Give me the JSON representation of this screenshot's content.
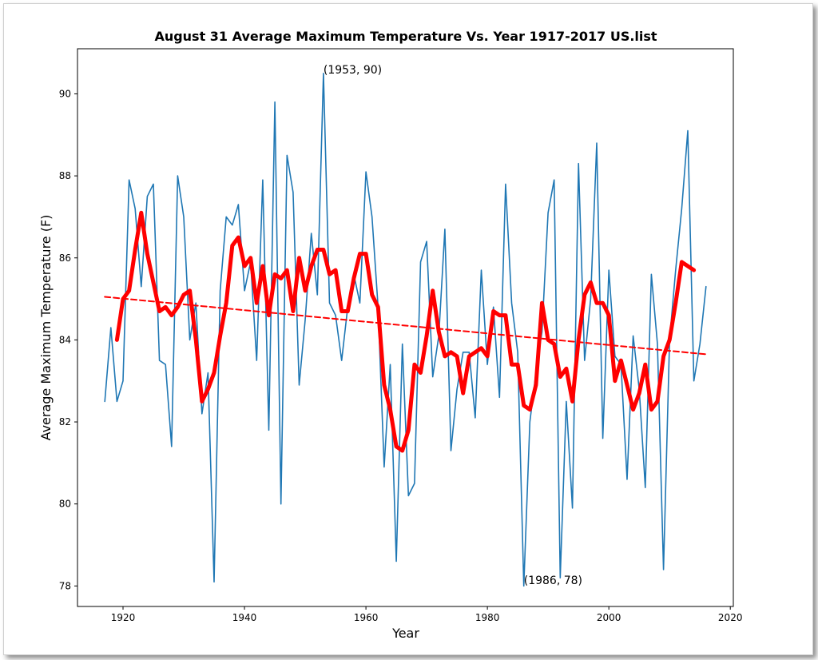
{
  "chart_data": {
    "type": "line",
    "title": "August 31 Average Maximum Temperature Vs. Year 1917-2017 US.list",
    "xlabel": "Year",
    "ylabel": "Average Maximum Temperature (F)",
    "xlim": [
      1912.5,
      2020.5
    ],
    "ylim": [
      77.5,
      91.1
    ],
    "xticks": [
      1920,
      1940,
      1960,
      1980,
      2000,
      2020
    ],
    "yticks": [
      78,
      80,
      82,
      84,
      86,
      88,
      90
    ],
    "grid": false,
    "series": [
      {
        "kind": "annual",
        "color": "#1f77b4",
        "x": [
          1917,
          1918,
          1919,
          1920,
          1921,
          1922,
          1923,
          1924,
          1925,
          1926,
          1927,
          1928,
          1929,
          1930,
          1931,
          1932,
          1933,
          1934,
          1935,
          1936,
          1937,
          1938,
          1939,
          1940,
          1941,
          1942,
          1943,
          1944,
          1945,
          1946,
          1947,
          1948,
          1949,
          1950,
          1951,
          1952,
          1953,
          1954,
          1955,
          1956,
          1957,
          1958,
          1959,
          1960,
          1961,
          1962,
          1963,
          1964,
          1965,
          1966,
          1967,
          1968,
          1969,
          1970,
          1971,
          1972,
          1973,
          1974,
          1975,
          1976,
          1977,
          1978,
          1979,
          1980,
          1981,
          1982,
          1983,
          1984,
          1985,
          1986,
          1987,
          1988,
          1989,
          1990,
          1991,
          1992,
          1993,
          1994,
          1995,
          1996,
          1997,
          1998,
          1999,
          2000,
          2001,
          2002,
          2003,
          2004,
          2005,
          2006,
          2007,
          2008,
          2009,
          2010,
          2011,
          2012,
          2013,
          2014,
          2015,
          2016
        ],
        "y": [
          82.5,
          84.3,
          82.5,
          83.0,
          87.9,
          87.2,
          85.3,
          87.5,
          87.8,
          83.5,
          83.4,
          81.4,
          88.0,
          87.0,
          84.0,
          84.9,
          82.2,
          83.2,
          78.1,
          85.2,
          87.0,
          86.8,
          87.3,
          85.2,
          85.9,
          83.5,
          87.9,
          81.8,
          89.8,
          80.0,
          88.5,
          87.6,
          82.9,
          84.5,
          86.6,
          85.1,
          90.5,
          84.9,
          84.6,
          83.5,
          84.8,
          85.6,
          84.9,
          88.1,
          87.0,
          84.8,
          80.9,
          83.4,
          78.6,
          83.9,
          80.2,
          80.5,
          85.9,
          86.4,
          83.1,
          84.1,
          86.7,
          81.3,
          82.8,
          83.7,
          83.7,
          82.1,
          85.7,
          83.4,
          84.8,
          82.6,
          87.8,
          84.9,
          83.7,
          78.0,
          82.0,
          83.2,
          84.2,
          87.1,
          87.9,
          78.2,
          82.5,
          79.9,
          88.3,
          83.5,
          85.0,
          88.8,
          81.6,
          85.7,
          83.6,
          83.4,
          80.6,
          84.1,
          82.8,
          80.4,
          85.6,
          83.9,
          78.4,
          84.0,
          85.7,
          87.2,
          89.1,
          83.0,
          83.9,
          85.3
        ]
      },
      {
        "kind": "moving-average",
        "color": "#ff0000",
        "x": [
          1919,
          1920,
          1921,
          1922,
          1923,
          1924,
          1925,
          1926,
          1927,
          1928,
          1929,
          1930,
          1931,
          1932,
          1933,
          1934,
          1935,
          1936,
          1937,
          1938,
          1939,
          1940,
          1941,
          1942,
          1943,
          1944,
          1945,
          1946,
          1947,
          1948,
          1949,
          1950,
          1951,
          1952,
          1953,
          1954,
          1955,
          1956,
          1957,
          1958,
          1959,
          1960,
          1961,
          1962,
          1963,
          1964,
          1965,
          1966,
          1967,
          1968,
          1969,
          1970,
          1971,
          1972,
          1973,
          1974,
          1975,
          1976,
          1977,
          1978,
          1979,
          1980,
          1981,
          1982,
          1983,
          1984,
          1985,
          1986,
          1987,
          1988,
          1989,
          1990,
          1991,
          1992,
          1993,
          1994,
          1995,
          1996,
          1997,
          1998,
          1999,
          2000,
          2001,
          2002,
          2003,
          2004,
          2005,
          2006,
          2007,
          2008,
          2009,
          2010,
          2011,
          2012,
          2013,
          2014
        ],
        "y": [
          84.0,
          85.0,
          85.2,
          86.2,
          87.1,
          86.1,
          85.4,
          84.7,
          84.8,
          84.6,
          84.8,
          85.1,
          85.2,
          84.0,
          82.5,
          82.8,
          83.2,
          84.1,
          84.9,
          86.3,
          86.5,
          85.8,
          86.0,
          84.9,
          85.8,
          84.6,
          85.6,
          85.5,
          85.7,
          84.7,
          86.0,
          85.2,
          85.8,
          86.2,
          86.2,
          85.6,
          85.7,
          84.7,
          84.7,
          85.5,
          86.1,
          86.1,
          85.1,
          84.8,
          82.9,
          82.3,
          81.4,
          81.3,
          81.8,
          83.4,
          83.2,
          84.1,
          85.2,
          84.2,
          83.6,
          83.7,
          83.6,
          82.7,
          83.6,
          83.7,
          83.8,
          83.6,
          84.7,
          84.6,
          84.6,
          83.4,
          83.4,
          82.4,
          82.3,
          82.9,
          84.9,
          84.0,
          83.9,
          83.1,
          83.3,
          82.5,
          84.0,
          85.1,
          85.4,
          84.9,
          84.9,
          84.6,
          83.0,
          83.5,
          82.9,
          82.3,
          82.7,
          83.4,
          82.3,
          82.5,
          83.6,
          84.0,
          84.9,
          85.9,
          85.8,
          85.7
        ]
      },
      {
        "kind": "trend",
        "color": "#ff0000",
        "x": [
          1917,
          2016
        ],
        "y": [
          85.05,
          83.65
        ]
      }
    ],
    "annotations": [
      {
        "text": "(1953, 90)",
        "x": 1953,
        "y": 90.5
      },
      {
        "text": "(1986, 78)",
        "x": 1986,
        "y": 78.05
      }
    ]
  }
}
